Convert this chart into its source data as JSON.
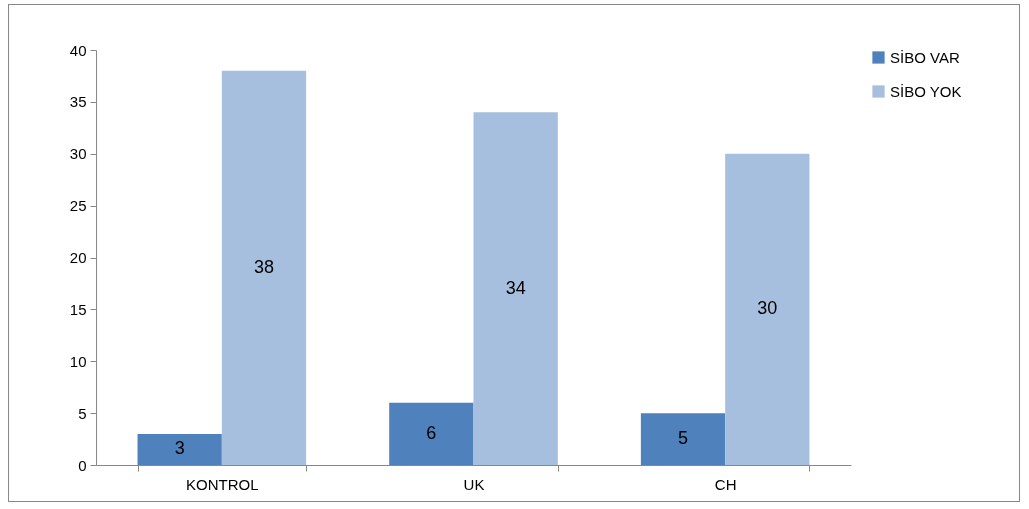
{
  "chart_data": {
    "type": "bar",
    "categories": [
      "KONTROL",
      "UK",
      "CH"
    ],
    "series": [
      {
        "name": "SİBO VAR",
        "color": "#4f81bd",
        "values": [
          3,
          6,
          5
        ]
      },
      {
        "name": "SİBO YOK",
        "color": "#a7bfdf",
        "values": [
          38,
          34,
          30
        ]
      }
    ],
    "ylim": [
      0,
      40
    ],
    "yticks": [
      0,
      5,
      10,
      15,
      20,
      25,
      30,
      35,
      40
    ],
    "grid": false,
    "legend": "right",
    "data_labels": true
  }
}
